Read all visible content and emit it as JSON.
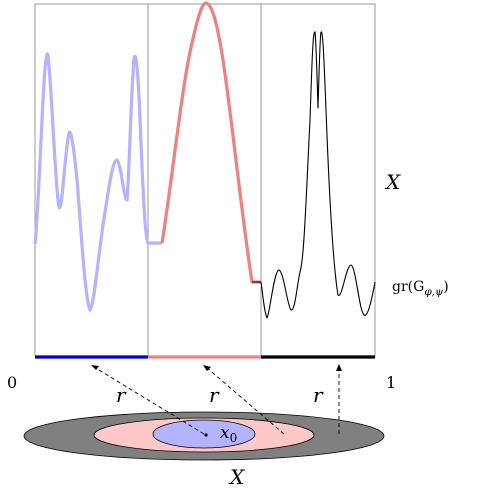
{
  "labels": {
    "space_top": "X",
    "graph": "gr(G",
    "graph_sub": "φ,ψ",
    "graph_close": ")",
    "axis_start": "0",
    "axis_end": "1",
    "radius": "r",
    "point": "x",
    "point_sub": "0",
    "space_bottom": "X"
  },
  "colors": {
    "segment_1": "#0000cc",
    "curve_1": "#b3b3ff",
    "segment_2": "#f08080",
    "curve_2": "#f08080",
    "segment_3": "#000000",
    "curve_3": "#000000",
    "outer_ellipse": "#808080",
    "middle_ellipse": "#ffc8c8",
    "inner_ellipse": "#b3b3ff",
    "frame": "#999999"
  }
}
